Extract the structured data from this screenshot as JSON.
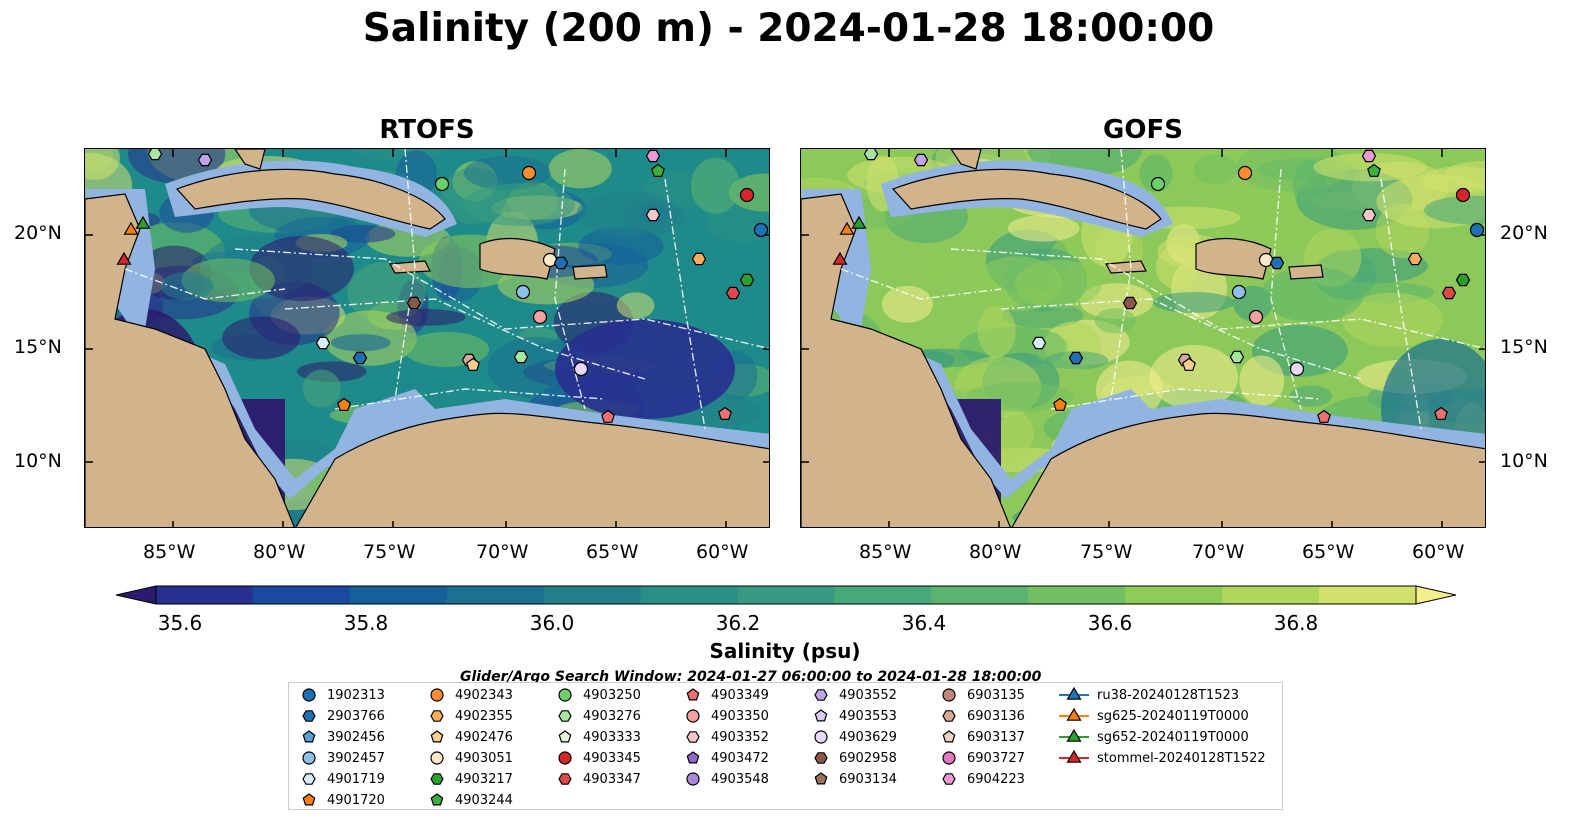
{
  "title": "Salinity (200 m) - 2024-01-28 18:00:00",
  "panels": [
    {
      "title": "RTOFS",
      "id": "rtofs",
      "base": "#1f8a8a"
    },
    {
      "title": "GOFS",
      "id": "gofs",
      "base": "#8cc85a"
    }
  ],
  "lat_ticks": [
    "20°N",
    "15°N",
    "10°N"
  ],
  "lon_ticks": [
    "85°W",
    "80°W",
    "75°W",
    "70°W",
    "65°W",
    "60°W"
  ],
  "colorbar": {
    "label": "Salinity (psu)",
    "ticks": [
      "35.6",
      "35.8",
      "36.0",
      "36.2",
      "36.4",
      "36.6",
      "36.8"
    ],
    "colors": [
      "#2b1a6e",
      "#27308f",
      "#1b49a0",
      "#155f9a",
      "#1a7192",
      "#217f8c",
      "#2a8f86",
      "#369b80",
      "#48a878",
      "#5bb46d",
      "#72c061",
      "#8ecc58",
      "#b0d75d",
      "#d2e16e",
      "#f5ef8e"
    ]
  },
  "search_window": "Glider/Argo Search Window: 2024-01-27 06:00:00 to 2024-01-28 18:00:00",
  "legend": [
    {
      "label": "1902313",
      "marker": "circle",
      "color": "#1f6fb4"
    },
    {
      "label": "2903766",
      "marker": "hexagon",
      "color": "#1f6fb4"
    },
    {
      "label": "3902456",
      "marker": "pentagon",
      "color": "#5a9fd4"
    },
    {
      "label": "3902457",
      "marker": "circle",
      "color": "#8fc0ea"
    },
    {
      "label": "4901719",
      "marker": "hexagon",
      "color": "#d8ecfa"
    },
    {
      "label": "4901720",
      "marker": "pentagon",
      "color": "#ff7f0e"
    },
    {
      "label": "4902343",
      "marker": "circle",
      "color": "#ff8c30"
    },
    {
      "label": "4902355",
      "marker": "hexagon",
      "color": "#ffac60"
    },
    {
      "label": "4902476",
      "marker": "pentagon",
      "color": "#ffcc90"
    },
    {
      "label": "4903051",
      "marker": "circle",
      "color": "#ffe8cc"
    },
    {
      "label": "4903217",
      "marker": "hexagon",
      "color": "#2ca02c"
    },
    {
      "label": "4903244",
      "marker": "pentagon",
      "color": "#3cb03c"
    },
    {
      "label": "4903250",
      "marker": "circle",
      "color": "#6ccf6c"
    },
    {
      "label": "4903276",
      "marker": "hexagon",
      "color": "#a8e6a0"
    },
    {
      "label": "4903333",
      "marker": "pentagon",
      "color": "#e0f8d8"
    },
    {
      "label": "4903345",
      "marker": "circle",
      "color": "#d62728"
    },
    {
      "label": "4903347",
      "marker": "hexagon",
      "color": "#e04848"
    },
    {
      "label": "4903349",
      "marker": "pentagon",
      "color": "#ec7070"
    },
    {
      "label": "4903350",
      "marker": "circle",
      "color": "#f4a0a0"
    },
    {
      "label": "4903352",
      "marker": "hexagon",
      "color": "#f8c8c8"
    },
    {
      "label": "4903472",
      "marker": "pentagon",
      "color": "#8c6bc8"
    },
    {
      "label": "4903548",
      "marker": "circle",
      "color": "#a888d8"
    },
    {
      "label": "4903552",
      "marker": "hexagon",
      "color": "#c0a4e8"
    },
    {
      "label": "4903553",
      "marker": "pentagon",
      "color": "#dcc8f4"
    },
    {
      "label": "4903629",
      "marker": "circle",
      "color": "#e8d8f8"
    },
    {
      "label": "6902958",
      "marker": "hexagon",
      "color": "#8c564b"
    },
    {
      "label": "6903134",
      "marker": "pentagon",
      "color": "#a0705f"
    },
    {
      "label": "6903135",
      "marker": "circle",
      "color": "#c08878"
    },
    {
      "label": "6903136",
      "marker": "hexagon",
      "color": "#d8a898"
    },
    {
      "label": "6903137",
      "marker": "pentagon",
      "color": "#f0d0c0"
    },
    {
      "label": "6903727",
      "marker": "circle",
      "color": "#e377c2"
    },
    {
      "label": "6904223",
      "marker": "hexagon",
      "color": "#ec98d4"
    },
    {
      "label": "ru38-20240128T1523",
      "marker": "triangle",
      "color": "#1f77b4"
    },
    {
      "label": "sg625-20240119T0000",
      "marker": "triangle",
      "color": "#ff7f0e"
    },
    {
      "label": "sg652-20240119T0000",
      "marker": "triangle",
      "color": "#2ca02c"
    },
    {
      "label": "stommel-20240128T1522",
      "marker": "triangle",
      "color": "#d62728"
    }
  ]
}
